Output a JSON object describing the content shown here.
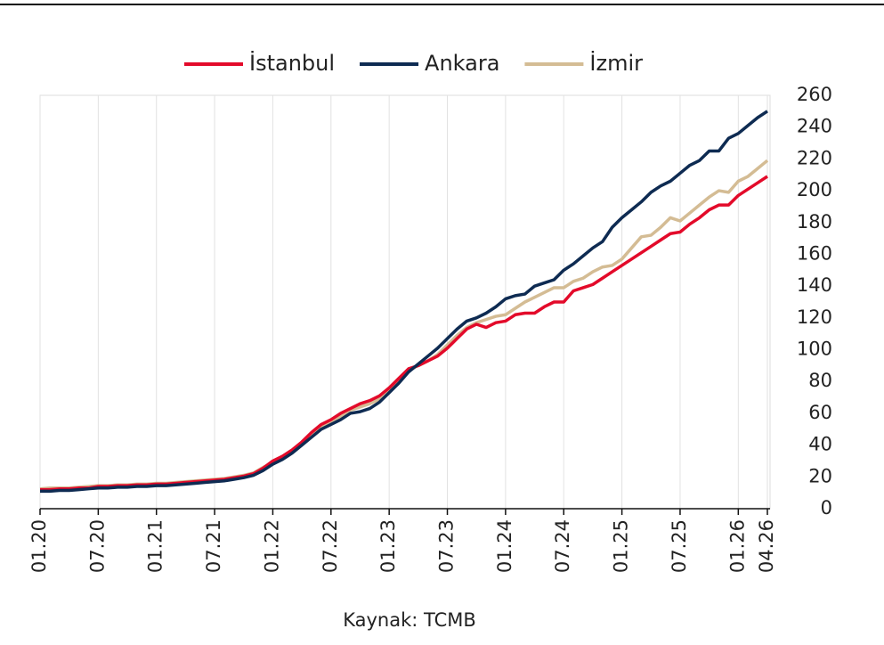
{
  "chart_data": {
    "type": "line",
    "source": "Kaynak: TCMB",
    "categories": [
      "01.20",
      null,
      null,
      null,
      null,
      null,
      "07.20",
      null,
      null,
      null,
      null,
      null,
      "01.21",
      null,
      null,
      null,
      null,
      null,
      "07.21",
      null,
      null,
      null,
      null,
      null,
      "01.22",
      null,
      null,
      null,
      null,
      null,
      "07.22",
      null,
      null,
      null,
      null,
      null,
      "01.23",
      null,
      null,
      null,
      null,
      null,
      "07.23",
      null,
      null,
      null,
      null,
      null,
      "01.24",
      null,
      null,
      null,
      null,
      null,
      "07.24",
      null,
      null,
      null,
      null,
      null,
      "01.25",
      null,
      null,
      null,
      null,
      null,
      "07.25",
      null,
      null,
      null,
      null,
      null,
      "01.26",
      null,
      null,
      "04.26"
    ],
    "series": [
      {
        "name": "İstanbul",
        "color": "#e30a2a",
        "values": [
          12,
          12,
          12.5,
          12.5,
          13,
          13,
          14,
          14,
          14.5,
          14.5,
          15,
          15,
          15.5,
          15.5,
          16,
          16.5,
          17,
          17.5,
          18,
          18.5,
          19.5,
          20.5,
          22,
          25.5,
          30,
          33,
          37,
          42,
          48,
          53,
          56,
          60,
          63,
          66,
          68,
          71,
          76,
          82,
          88,
          90,
          93,
          96,
          101,
          107,
          113,
          116,
          114,
          117,
          118,
          122,
          123,
          123,
          127,
          130,
          130,
          137,
          139,
          141,
          145,
          149,
          153,
          157,
          161,
          165,
          169,
          173,
          174,
          179,
          183,
          188,
          191,
          191,
          197,
          201,
          205,
          209
        ]
      },
      {
        "name": "Ankara",
        "color": "#0e2b52",
        "values": [
          11,
          11,
          11.5,
          11.5,
          12,
          12.5,
          13,
          13,
          13.5,
          13.5,
          14,
          14,
          14.5,
          14.5,
          15,
          15.5,
          16,
          16.5,
          17,
          17.5,
          18.5,
          19.5,
          21,
          24,
          28,
          31,
          35,
          40,
          45,
          50,
          53,
          56,
          60,
          61,
          63,
          67,
          73,
          79,
          86,
          91,
          96,
          101,
          107,
          113,
          118,
          120,
          123,
          127,
          132,
          134,
          135,
          140,
          142,
          144,
          150,
          154,
          159,
          164,
          168,
          177,
          183,
          188,
          193,
          199,
          203,
          206,
          211,
          216,
          219,
          225,
          225,
          233,
          236,
          241,
          246,
          250
        ]
      },
      {
        "name": "İzmir",
        "color": "#d4bc94",
        "values": [
          12.5,
          13,
          13,
          13,
          13.5,
          14,
          14.5,
          14.5,
          15,
          15,
          15.5,
          15.5,
          16,
          16,
          16.5,
          17,
          17.5,
          18,
          18.5,
          19,
          20,
          21,
          22.5,
          26,
          29,
          32,
          36,
          41,
          46,
          51,
          54,
          58,
          62,
          64,
          66,
          69,
          75,
          81,
          87,
          90,
          93,
          97,
          103,
          109,
          114,
          117,
          119,
          121,
          122,
          126,
          130,
          133,
          136,
          139,
          139,
          143,
          145,
          149,
          152,
          153,
          157,
          164,
          171,
          172,
          177,
          183,
          181,
          186,
          191,
          196,
          200,
          199,
          206,
          209,
          214,
          219
        ]
      }
    ],
    "ylim": [
      0,
      260
    ],
    "yticks": [
      0,
      20,
      40,
      60,
      80,
      100,
      120,
      140,
      160,
      180,
      200,
      220,
      240,
      260
    ],
    "grid": true,
    "legend": "top"
  }
}
